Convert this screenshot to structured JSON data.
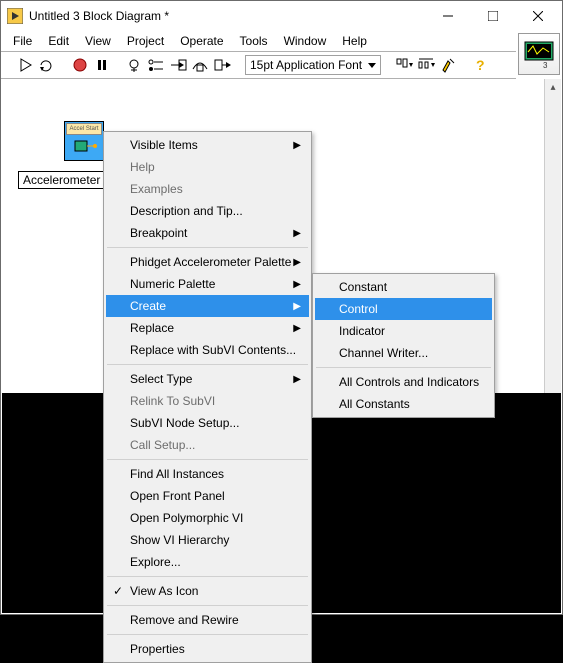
{
  "window": {
    "title": "Untitled 3 Block Diagram *"
  },
  "menubar": {
    "items": [
      "File",
      "Edit",
      "View",
      "Project",
      "Operate",
      "Tools",
      "Window",
      "Help"
    ]
  },
  "toolbar": {
    "font_label": "15pt Application Font"
  },
  "canvas": {
    "block_label": "Accel Start",
    "node_label": "Accelerometer"
  },
  "context_menu": {
    "items": [
      {
        "label": "Visible Items",
        "submenu": true
      },
      {
        "label": "Help",
        "disabled": true
      },
      {
        "label": "Examples",
        "disabled": true
      },
      {
        "label": "Description and Tip..."
      },
      {
        "label": "Breakpoint",
        "submenu": true
      },
      {
        "sep": true
      },
      {
        "label": "Phidget Accelerometer Palette",
        "submenu": true
      },
      {
        "label": "Numeric Palette",
        "submenu": true
      },
      {
        "label": "Create",
        "submenu": true,
        "highlight": true
      },
      {
        "label": "Replace",
        "submenu": true
      },
      {
        "label": "Replace with SubVI Contents..."
      },
      {
        "sep": true
      },
      {
        "label": "Select Type",
        "submenu": true
      },
      {
        "label": "Relink To SubVI",
        "disabled": true
      },
      {
        "label": "SubVI Node Setup..."
      },
      {
        "label": "Call Setup...",
        "disabled": true
      },
      {
        "sep": true
      },
      {
        "label": "Find All Instances"
      },
      {
        "label": "Open Front Panel"
      },
      {
        "label": "Open Polymorphic VI"
      },
      {
        "label": "Show VI Hierarchy"
      },
      {
        "label": "Explore..."
      },
      {
        "sep": true
      },
      {
        "label": "View As Icon",
        "checked": true
      },
      {
        "sep": true
      },
      {
        "label": "Remove and Rewire"
      },
      {
        "sep": true
      },
      {
        "label": "Properties"
      }
    ]
  },
  "submenu": {
    "items": [
      {
        "label": "Constant"
      },
      {
        "label": "Control",
        "highlight": true
      },
      {
        "label": "Indicator"
      },
      {
        "label": "Channel Writer..."
      },
      {
        "sep": true
      },
      {
        "label": "All Controls and Indicators"
      },
      {
        "label": "All Constants"
      }
    ]
  }
}
